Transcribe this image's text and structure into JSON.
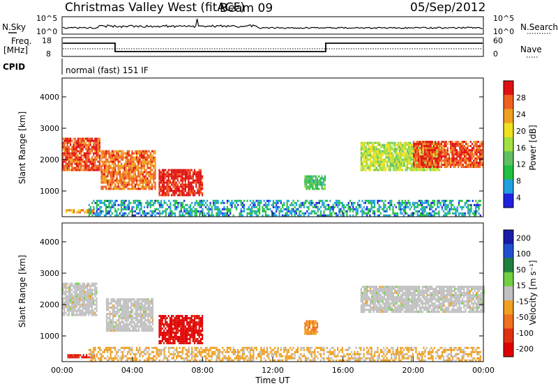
{
  "header": {
    "station": "Christmas Valley West (fitACF)",
    "beam": "Beam 09",
    "date": "05/Sep/2012"
  },
  "top_panels": {
    "nsky_label": "N.Sky",
    "nsky_ticks": [
      "10^5",
      "10^0"
    ],
    "nsearch_label": "N.Search",
    "nsearch_ticks": [
      "10^5",
      "10^0"
    ],
    "freq_label": "Freq.",
    "freq_unit": "[MHz]",
    "freq_ticks": [
      "18",
      "8"
    ],
    "nave_label": "Nave",
    "nave_ticks": [
      "60",
      "0"
    ],
    "cpid_label": "CPID",
    "cpid_value": "normal (fast) 151 IF"
  },
  "colors": {
    "power": [
      "#2020e0",
      "#20a0e0",
      "#20c040",
      "#60c060",
      "#a0e040",
      "#f0e020",
      "#f0a020",
      "#f06020",
      "#e01010"
    ],
    "velocity": [
      "#1a1aa8",
      "#2050d0",
      "#208040",
      "#70d040",
      "#c0c0c0",
      "#f0a020",
      "#f07020",
      "#e03010",
      "#e00000"
    ]
  },
  "chart_data": [
    {
      "type": "heatmap",
      "panel": "power",
      "ylabel": "Slant Range [km]",
      "yticks": [
        "4000",
        "3000",
        "2000",
        "1000"
      ],
      "ylim": [
        180,
        4600
      ],
      "xlim": [
        "00:00",
        "24:00"
      ],
      "xticks": [
        "00:00",
        "04:00",
        "08:00",
        "12:00",
        "16:00",
        "20:00",
        "00:00"
      ],
      "colorbar": {
        "label": "Power [dB]",
        "ticks": [
          "28",
          "24",
          "20",
          "16",
          "12",
          "8",
          "4"
        ],
        "range": [
          0,
          30
        ]
      },
      "regions": [
        {
          "t0": 0.0,
          "t1": 2.1,
          "r0": 1700,
          "r1": 2700,
          "value": 26
        },
        {
          "t0": 2.2,
          "t1": 5.3,
          "r0": 1100,
          "r1": 2300,
          "value": 24
        },
        {
          "t0": 5.5,
          "t1": 8.0,
          "r0": 900,
          "r1": 1700,
          "value": 28
        },
        {
          "t0": 0.2,
          "t1": 1.8,
          "r0": 350,
          "r1": 480,
          "value": 22
        },
        {
          "t0": 1.5,
          "t1": 23.8,
          "r0": 250,
          "r1": 750,
          "value": 6
        },
        {
          "t0": 17.0,
          "t1": 21.5,
          "r0": 1700,
          "r1": 2600,
          "value": 16
        },
        {
          "t0": 20.0,
          "t1": 24.0,
          "r0": 1800,
          "r1": 2600,
          "value": 26
        },
        {
          "t0": 13.8,
          "t1": 15.0,
          "r0": 1100,
          "r1": 1500,
          "value": 10
        }
      ]
    },
    {
      "type": "heatmap",
      "panel": "velocity",
      "ylabel": "Slant Range [km]",
      "yticks": [
        "4000",
        "3000",
        "2000",
        "1000"
      ],
      "ylim": [
        180,
        4600
      ],
      "xlim": [
        "00:00",
        "24:00"
      ],
      "xticks": [
        "00:00",
        "04:00",
        "08:00",
        "12:00",
        "16:00",
        "20:00",
        "00:00"
      ],
      "xlabel": "Time UT",
      "colorbar": {
        "label": "Velocity [m s⁻¹]",
        "ticks": [
          "200",
          "100",
          "50",
          "15",
          "-15",
          "-50",
          "-100",
          "-200"
        ],
        "range": [
          -250,
          250
        ]
      },
      "regions": [
        {
          "t0": 0.0,
          "t1": 2.0,
          "r0": 1700,
          "r1": 2700,
          "value": 0
        },
        {
          "t0": 2.5,
          "t1": 5.2,
          "r0": 1200,
          "r1": 2200,
          "value": 0
        },
        {
          "t0": 5.5,
          "t1": 8.0,
          "r0": 800,
          "r1": 1700,
          "value": -220
        },
        {
          "t0": 0.3,
          "t1": 1.8,
          "r0": 350,
          "r1": 480,
          "value": -200
        },
        {
          "t0": 1.5,
          "t1": 23.8,
          "r0": 250,
          "r1": 700,
          "value": -40
        },
        {
          "t0": 17.0,
          "t1": 24.0,
          "r0": 1800,
          "r1": 2600,
          "value": 0
        },
        {
          "t0": 13.8,
          "t1": 14.5,
          "r0": 1100,
          "r1": 1500,
          "value": -80
        }
      ]
    }
  ]
}
